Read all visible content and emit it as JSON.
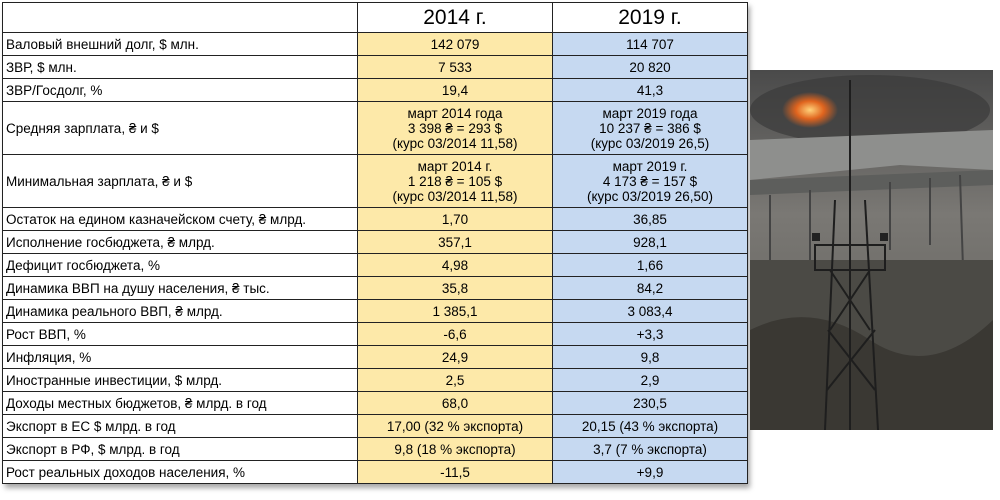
{
  "table": {
    "columns": [
      "2014 г.",
      "2019 г."
    ],
    "rows": [
      [
        "Валовый внешний долг, $ млн.",
        "142 079",
        "114 707"
      ],
      [
        "ЗВР, $ млн.",
        "7 533",
        "20 820"
      ],
      [
        "ЗВР/Госдолг, %",
        "19,4",
        "41,3"
      ],
      [
        "Средняя зарплата, ₴ и $",
        [
          "март 2014 года",
          "3 398 ₴ = 293 $",
          "(курс 03/2014 11,58)"
        ],
        [
          "март 2019 года",
          "10 237 ₴ = 386 $",
          "(курс 03/2019 26,5)"
        ]
      ],
      [
        "Минимальная зарплата, ₴ и $",
        [
          "март 2014 г.",
          "1 218 ₴ = 105 $",
          "(курс 03/2014 11,58)"
        ],
        [
          "март 2019 г.",
          "4 173 ₴ = 157 $",
          "(курс 03/2019 26,50)"
        ]
      ],
      [
        "Остаток на едином казначейском счету, ₴ млрд.",
        "1,70",
        "36,85"
      ],
      [
        "Исполнение госбюджета, ₴ млрд.",
        "357,1",
        "928,1"
      ],
      [
        "Дефицит госбюджета, %",
        "4,98",
        "1,66"
      ],
      [
        "Динамика ВВП на душу населения, ₴ тыс.",
        "35,8",
        "84,2"
      ],
      [
        "Динамика реального ВВП, ₴ млрд.",
        "1 385,1",
        "3 083,4"
      ],
      [
        "Рост ВВП, %",
        "-6,6",
        "+3,3"
      ],
      [
        "Инфляция, %",
        "24,9",
        "9,8"
      ],
      [
        "Иностранные инвестиции, $ млрд.",
        "2,5",
        "2,9"
      ],
      [
        "Доходы местных бюджетов,  ₴ млрд. в год",
        "68,0",
        "230,5"
      ],
      [
        "Экспорт в ЕС $ млрд. в год",
        "17,00 (32 % экспорта)",
        "20,15 (43 % экспорта)"
      ],
      [
        "Экспорт в РФ, $ млрд. в год",
        "9,8 (18 % экспорта)",
        "3,7 (7 % экспорта)"
      ],
      [
        "Рост реальных доходов населения, %",
        "-11,5",
        "+9,9"
      ]
    ]
  }
}
